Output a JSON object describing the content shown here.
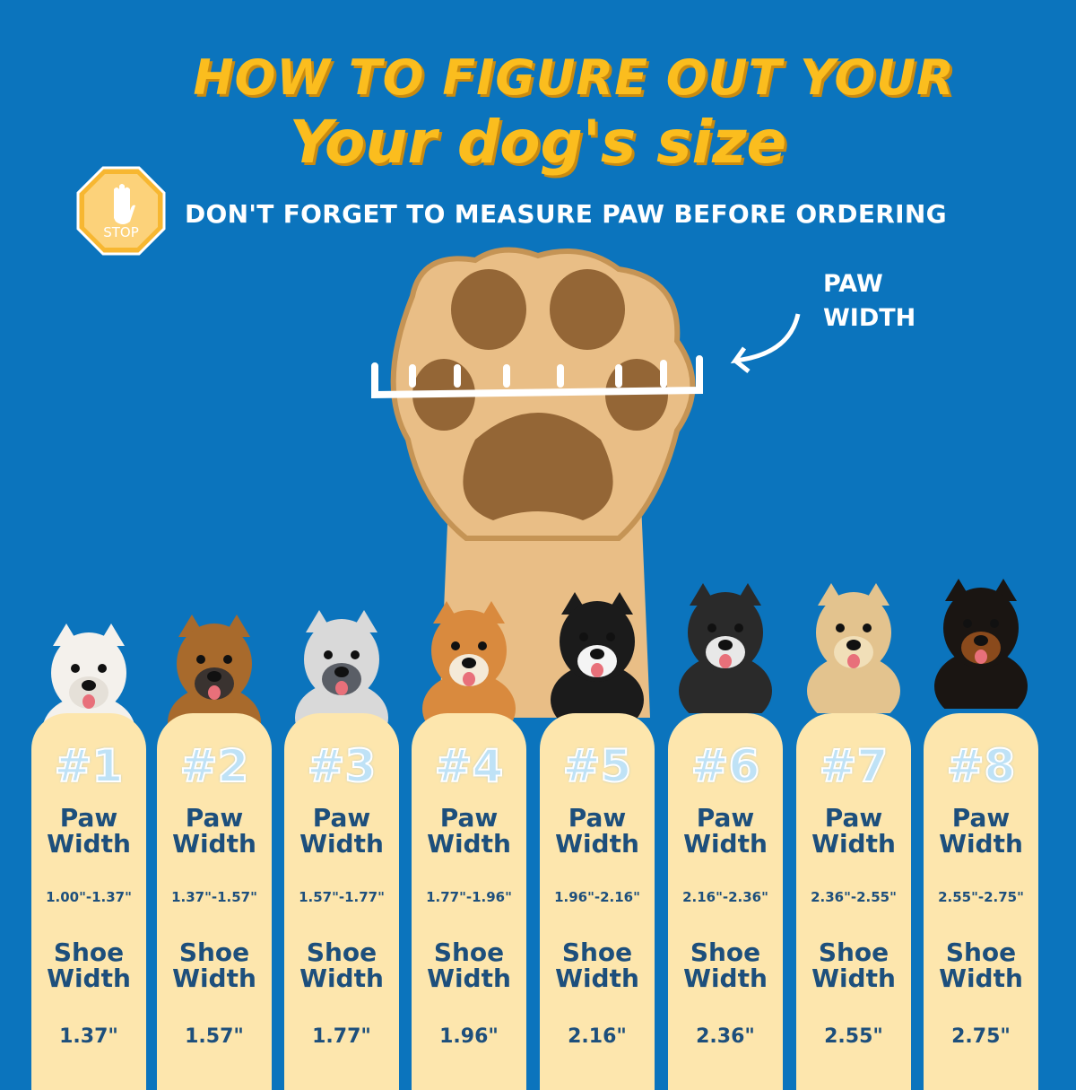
{
  "title_line1": "HOW TO FIGURE OUT YOUR",
  "title_line2": "Your dog's size",
  "stop_sign": "STOP",
  "subtitle": "DON'T FORGET TO MEASURE PAW BEFORE ORDERING",
  "paw_label": {
    "line1": "PAW",
    "line2": "WIDTH"
  },
  "colors": {
    "background": "#0b74bd",
    "title": "#fbbd1e",
    "card": "#fde6ad",
    "card_text": "#1d4f7c"
  },
  "sizes": [
    {
      "num": "#1",
      "paw": "Paw",
      "paw2": "Width",
      "range": "1.00\"-1.37\"",
      "shoe": "Shoe",
      "shoe2": "Width",
      "value": "1.37\""
    },
    {
      "num": "#2",
      "paw": "Paw",
      "paw2": "Width",
      "range": "1.37\"-1.57\"",
      "shoe": "Shoe",
      "shoe2": "Width",
      "value": "1.57\""
    },
    {
      "num": "#3",
      "paw": "Paw",
      "paw2": "Width",
      "range": "1.57\"-1.77\"",
      "shoe": "Shoe",
      "shoe2": "Width",
      "value": "1.77\""
    },
    {
      "num": "#4",
      "paw": "Paw",
      "paw2": "Width",
      "range": "1.77\"-1.96\"",
      "shoe": "Shoe",
      "shoe2": "Width",
      "value": "1.96\""
    },
    {
      "num": "#5",
      "paw": "Paw",
      "paw2": "Width",
      "range": "1.96\"-2.16\"",
      "shoe": "Shoe",
      "shoe2": "Width",
      "value": "2.16\""
    },
    {
      "num": "#6",
      "paw": "Paw",
      "paw2": "Width",
      "range": "2.16\"-2.36\"",
      "shoe": "Shoe",
      "shoe2": "Width",
      "value": "2.36\""
    },
    {
      "num": "#7",
      "paw": "Paw",
      "paw2": "Width",
      "range": "2.36\"-2.55\"",
      "shoe": "Shoe",
      "shoe2": "Width",
      "value": "2.55\""
    },
    {
      "num": "#8",
      "paw": "Paw",
      "paw2": "Width",
      "range": "2.55\"-2.75\"",
      "shoe": "Shoe",
      "shoe2": "Width",
      "value": "2.75\""
    }
  ]
}
